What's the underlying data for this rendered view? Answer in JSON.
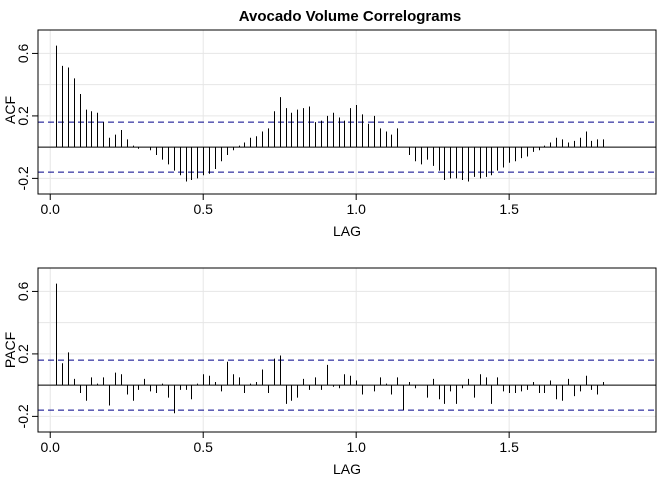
{
  "chart_data": [
    {
      "type": "bar",
      "title": "Avocado Volume Correlograms",
      "ylabel": "ACF",
      "xlabel": "LAG",
      "xlim": [
        -0.04,
        1.98
      ],
      "ylim": [
        -0.3,
        0.75
      ],
      "x_ticks": [
        0.0,
        0.5,
        1.0,
        1.5
      ],
      "x_tick_labels": [
        "0.0",
        "0.5",
        "1.0",
        "1.5"
      ],
      "y_ticks": [
        -0.2,
        0.2,
        0.6
      ],
      "y_tick_labels": [
        "-0.2",
        "0.2",
        "0.6"
      ],
      "ci": [
        0.16,
        -0.16
      ],
      "grid": true,
      "lag_step": 0.01923,
      "values": [
        0.65,
        0.52,
        0.51,
        0.44,
        0.34,
        0.24,
        0.23,
        0.22,
        0.16,
        0.06,
        0.08,
        0.11,
        0.05,
        0.01,
        -0.01,
        0.0,
        -0.02,
        -0.05,
        -0.08,
        -0.11,
        -0.15,
        -0.18,
        -0.22,
        -0.21,
        -0.2,
        -0.18,
        -0.17,
        -0.14,
        -0.09,
        -0.05,
        -0.02,
        0.01,
        0.03,
        0.06,
        0.07,
        0.1,
        0.12,
        0.23,
        0.32,
        0.25,
        0.22,
        0.24,
        0.25,
        0.26,
        0.16,
        0.17,
        0.2,
        0.22,
        0.19,
        0.17,
        0.25,
        0.27,
        0.21,
        0.15,
        0.2,
        0.12,
        0.1,
        0.08,
        0.12,
        0.0,
        -0.05,
        -0.09,
        -0.11,
        -0.08,
        -0.12,
        -0.15,
        -0.21,
        -0.2,
        -0.2,
        -0.21,
        -0.22,
        -0.19,
        -0.2,
        -0.19,
        -0.18,
        -0.15,
        -0.13,
        -0.1,
        -0.09,
        -0.07,
        -0.06,
        -0.03,
        -0.02,
        0.01,
        0.03,
        0.06,
        0.05,
        0.03,
        0.04,
        0.06,
        0.1,
        0.04,
        0.05,
        0.05
      ]
    },
    {
      "type": "bar",
      "title": "",
      "ylabel": "PACF",
      "xlabel": "LAG",
      "xlim": [
        -0.04,
        1.98
      ],
      "ylim": [
        -0.3,
        0.75
      ],
      "x_ticks": [
        0.0,
        0.5,
        1.0,
        1.5
      ],
      "x_tick_labels": [
        "0.0",
        "0.5",
        "1.0",
        "1.5"
      ],
      "y_ticks": [
        -0.2,
        0.2,
        0.6
      ],
      "y_tick_labels": [
        "-0.2",
        "0.2",
        "0.6"
      ],
      "ci": [
        0.16,
        -0.16
      ],
      "grid": true,
      "lag_step": 0.01923,
      "values": [
        0.65,
        0.14,
        0.21,
        0.04,
        -0.05,
        -0.1,
        0.05,
        0.01,
        0.05,
        -0.13,
        0.08,
        0.07,
        -0.06,
        -0.1,
        -0.03,
        0.04,
        -0.04,
        -0.05,
        0.01,
        -0.08,
        -0.18,
        -0.03,
        -0.03,
        -0.09,
        0.01,
        0.07,
        0.06,
        0.02,
        -0.04,
        0.15,
        0.07,
        0.05,
        -0.05,
        0.01,
        0.02,
        0.1,
        -0.05,
        0.17,
        0.19,
        -0.12,
        -0.1,
        -0.08,
        0.04,
        -0.03,
        0.05,
        -0.03,
        0.13,
        -0.01,
        -0.02,
        0.07,
        0.06,
        0.03,
        -0.06,
        0.0,
        -0.04,
        0.05,
        0.01,
        -0.06,
        0.05,
        -0.16,
        0.02,
        -0.02,
        0.0,
        -0.08,
        0.04,
        -0.09,
        -0.12,
        -0.04,
        -0.12,
        -0.02,
        0.04,
        -0.08,
        0.07,
        0.05,
        -0.12,
        0.05,
        -0.04,
        -0.05,
        -0.05,
        -0.04,
        -0.03,
        0.02,
        -0.05,
        -0.05,
        0.03,
        -0.09,
        -0.1,
        0.04,
        -0.07,
        -0.04,
        0.06,
        -0.03,
        -0.06,
        0.02
      ]
    }
  ]
}
